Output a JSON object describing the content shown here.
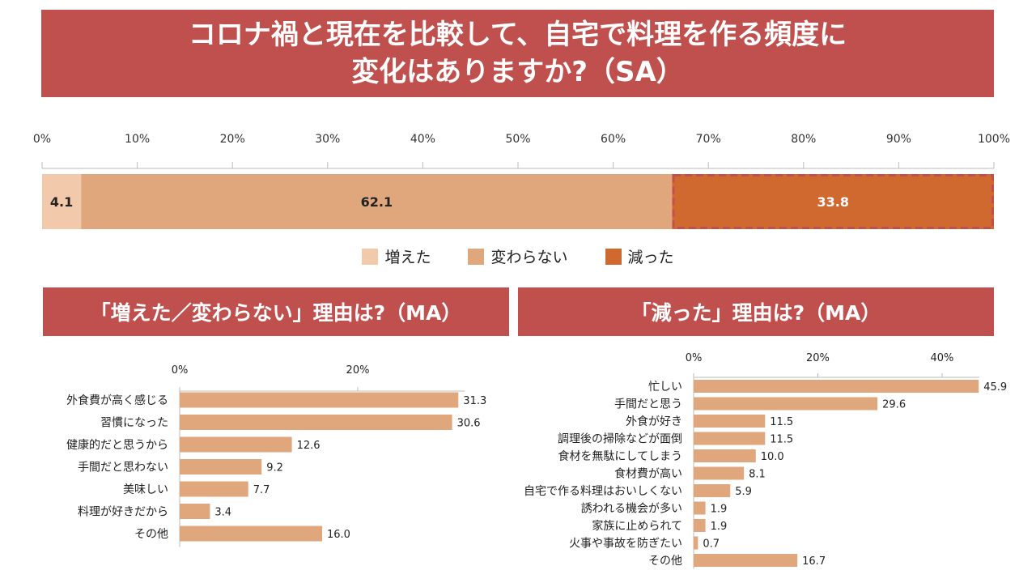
{
  "titles": {
    "main_line1": "コロナ禍と現在を比較して、自宅で料理を作る頻度に",
    "main_line2": "変化はありますか?（SA）",
    "left": "「増えた／変わらない」理由は?（MA）",
    "right": "「減った」理由は?（MA）"
  },
  "colors": {
    "banner": "#c0504d",
    "increased": "#f2c9aa",
    "unchanged": "#e0a67c",
    "decreased": "#d0692f",
    "bar": "#e0a67c"
  },
  "chart_data": [
    {
      "type": "bar",
      "orientation": "horizontal-stacked",
      "title": "コロナ禍と現在を比較して、自宅で料理を作る頻度に変化はありますか?（SA）",
      "xlim": [
        0,
        100
      ],
      "ticks": [
        "0%",
        "10%",
        "20%",
        "30%",
        "40%",
        "50%",
        "60%",
        "70%",
        "80%",
        "90%",
        "100%"
      ],
      "series": [
        {
          "name": "増えた",
          "value": 4.1,
          "label": "4.1"
        },
        {
          "name": "変わらない",
          "value": 62.1,
          "label": "62.1"
        },
        {
          "name": "減った",
          "value": 33.8,
          "label": "33.8"
        }
      ],
      "legend_position": "bottom"
    },
    {
      "type": "bar",
      "orientation": "horizontal",
      "title": "「増えた／変わらない」理由は?（MA）",
      "xlim": [
        0,
        32
      ],
      "ticks": [
        "0%",
        "20%"
      ],
      "tick_values": [
        0,
        20
      ],
      "categories": [
        "外食費が高く感じる",
        "習慣になった",
        "健康的だと思うから",
        "手間だと思わない",
        "美味しい",
        "料理が好きだから",
        "その他"
      ],
      "values": [
        31.3,
        30.6,
        12.6,
        9.2,
        7.7,
        3.4,
        16.0
      ],
      "labels": [
        "31.3",
        "30.6",
        "12.6",
        "9.2",
        "7.7",
        "3.4",
        "16.0"
      ]
    },
    {
      "type": "bar",
      "orientation": "horizontal",
      "title": "「減った」理由は?（MA）",
      "xlim": [
        0,
        46
      ],
      "ticks": [
        "0%",
        "20%",
        "40%"
      ],
      "tick_values": [
        0,
        20,
        40
      ],
      "categories": [
        "忙しい",
        "手間だと思う",
        "外食が好き",
        "調理後の掃除などが面倒",
        "食材を無駄にしてしまう",
        "食材費が高い",
        "自宅で作る料理はおいしくない",
        "誘われる機会が多い",
        "家族に止められて",
        "火事や事故を防ぎたい",
        "その他"
      ],
      "values": [
        45.9,
        29.6,
        11.5,
        11.5,
        10.0,
        8.1,
        5.9,
        1.9,
        1.9,
        0.7,
        16.7
      ],
      "labels": [
        "45.9",
        "29.6",
        "11.5",
        "11.5",
        "10.0",
        "8.1",
        "5.9",
        "1.9",
        "1.9",
        "0.7",
        "16.7"
      ]
    }
  ]
}
